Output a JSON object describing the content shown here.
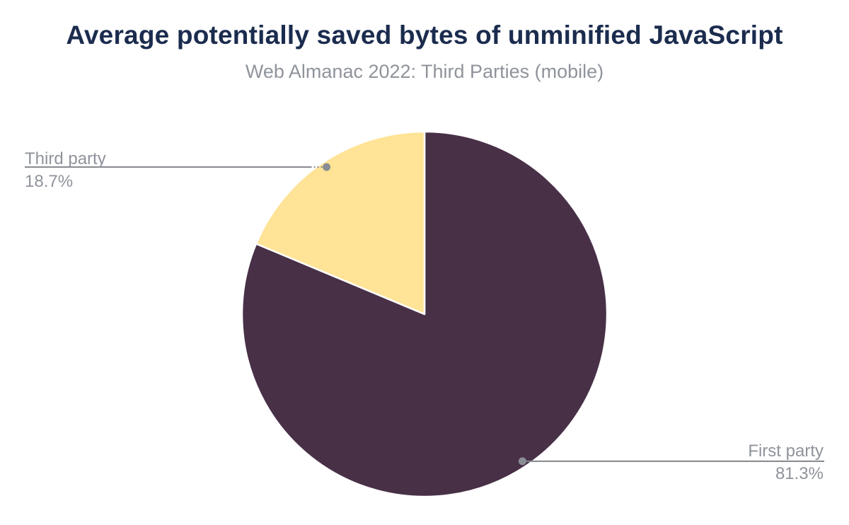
{
  "chart_data": {
    "type": "pie",
    "title": "Average potentially saved bytes of unminified JavaScript",
    "subtitle": "Web Almanac 2022: Third Parties (mobile)",
    "slices": [
      {
        "label": "First party",
        "value": 81.3,
        "display_value": "81.3%",
        "color": "#483047"
      },
      {
        "label": "Third party",
        "value": 18.7,
        "display_value": "18.7%",
        "color": "#ffe396"
      }
    ],
    "start_angle_deg": 0,
    "direction": "clockwise",
    "legend": "callout-labels",
    "background_color": "#ffffff",
    "title_color": "#1b2c4e",
    "label_color": "#8f939b",
    "callout_line_color": "#82868c",
    "callout_dot_color": "#8a8e94",
    "slice_border_color": "#ffffff"
  }
}
